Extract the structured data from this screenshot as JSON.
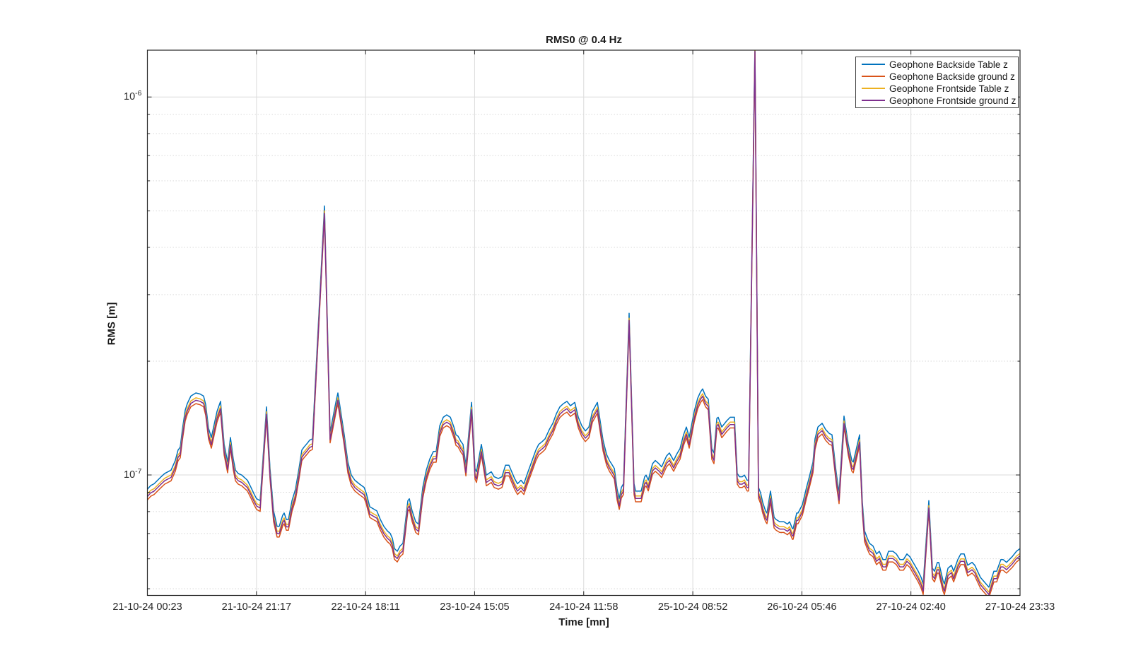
{
  "figure": {
    "title": "RMS0 @ 0.4 Hz",
    "xlabel": "Time [mn]",
    "ylabel": "RMS [m]",
    "background_color": "#ffffff",
    "axis_color": "#262626",
    "grid_major_color": "#dbdbdb",
    "grid_minor_color": "#d9d9d9"
  },
  "chart_data": {
    "type": "line",
    "title": "RMS0 @ 0.4 Hz",
    "xlabel": "Time [mn]",
    "ylabel": "RMS [m]",
    "y_scale": "log",
    "grid": true,
    "minor_grid": true,
    "legend_position": "top-right",
    "ylim": [
      4.8e-08,
      1.33e-06
    ],
    "xlim_minutes": [
      0,
      10030
    ],
    "x_ticks_minutes": [
      0,
      1254,
      2508,
      3761,
      5015,
      6269,
      7523,
      8776,
      10030
    ],
    "x_ticklabels": [
      "21-10-24 00:23",
      "21-10-24 21:17",
      "22-10-24 18:11",
      "23-10-24 15:05",
      "24-10-24 11:58",
      "25-10-24 08:52",
      "26-10-24 05:46",
      "27-10-24 02:40",
      "27-10-24 23:33"
    ],
    "y_ticks": [
      1e-07,
      1e-06
    ],
    "y_ticklabels": [
      {
        "base": "10",
        "exp": "-7"
      },
      {
        "base": "10",
        "exp": "-6"
      }
    ],
    "series": [
      {
        "name": "Geophone Backside Table z",
        "color": "#0072BD",
        "scale": 1.03
      },
      {
        "name": "Geophone Backside ground z",
        "color": "#D95319",
        "scale": 0.965
      },
      {
        "name": "Geophone Frontside Table z",
        "color": "#EDB120",
        "scale": 1.0
      },
      {
        "name": "Geophone Frontside ground z",
        "color": "#7E2F8E",
        "scale": 0.985
      }
    ],
    "series_note": "The four traces are nearly coincident; each series = base_points value multiplied by its scale factor. x = minutes after 21-10-24 00:23, y = RMS [m].",
    "base_points": [
      [
        0,
        8.9e-08
      ],
      [
        37,
        9.1e-08
      ],
      [
        77,
        9.2e-08
      ],
      [
        118,
        9.4e-08
      ],
      [
        158,
        9.6e-08
      ],
      [
        199,
        9.8e-08
      ],
      [
        272,
        1e-07
      ],
      [
        321,
        1.06e-07
      ],
      [
        353,
        1.13e-07
      ],
      [
        378,
        1.15e-07
      ],
      [
        402,
        1.28e-07
      ],
      [
        435,
        1.44e-07
      ],
      [
        459,
        1.5e-07
      ],
      [
        500,
        1.57e-07
      ],
      [
        557,
        1.6e-07
      ],
      [
        605,
        1.59e-07
      ],
      [
        646,
        1.57e-07
      ],
      [
        670,
        1.49e-07
      ],
      [
        703,
        1.29e-07
      ],
      [
        735,
        1.22e-07
      ],
      [
        800,
        1.43e-07
      ],
      [
        841,
        1.52e-07
      ],
      [
        882,
        1.17e-07
      ],
      [
        922,
        1.05e-07
      ],
      [
        955,
        1.22e-07
      ],
      [
        987,
        1.07e-07
      ],
      [
        1012,
        1e-07
      ],
      [
        1044,
        9.8e-08
      ],
      [
        1085,
        9.7e-08
      ],
      [
        1150,
        9.4e-08
      ],
      [
        1190,
        9e-08
      ],
      [
        1231,
        8.6e-08
      ],
      [
        1255,
        8.4e-08
      ],
      [
        1296,
        8.3e-08
      ],
      [
        1369,
        1.47e-07
      ],
      [
        1410,
        1.01e-07
      ],
      [
        1450,
        7.8e-08
      ],
      [
        1491,
        7.1e-08
      ],
      [
        1515,
        7.1e-08
      ],
      [
        1556,
        7.6e-08
      ],
      [
        1572,
        7.7e-08
      ],
      [
        1597,
        7.4e-08
      ],
      [
        1621,
        7.4e-08
      ],
      [
        1662,
        8.3e-08
      ],
      [
        1702,
        8.9e-08
      ],
      [
        1743,
        1.01e-07
      ],
      [
        1775,
        1.13e-07
      ],
      [
        1800,
        1.15e-07
      ],
      [
        1841,
        1.18e-07
      ],
      [
        1865,
        1.2e-07
      ],
      [
        1897,
        1.21e-07
      ],
      [
        2035,
        5e-07
      ],
      [
        2100,
        1.26e-07
      ],
      [
        2166,
        1.51e-07
      ],
      [
        2190,
        1.6e-07
      ],
      [
        2222,
        1.43e-07
      ],
      [
        2263,
        1.24e-07
      ],
      [
        2304,
        1.05e-07
      ],
      [
        2344,
        9.7e-08
      ],
      [
        2385,
        9.4e-08
      ],
      [
        2434,
        9.2e-08
      ],
      [
        2491,
        9e-08
      ],
      [
        2515,
        8.7e-08
      ],
      [
        2556,
        8e-08
      ],
      [
        2596,
        7.9e-08
      ],
      [
        2637,
        7.8e-08
      ],
      [
        2678,
        7.4e-08
      ],
      [
        2718,
        7.1e-08
      ],
      [
        2759,
        6.9e-08
      ],
      [
        2791,
        6.8e-08
      ],
      [
        2816,
        6.6e-08
      ],
      [
        2840,
        6.2e-08
      ],
      [
        2872,
        6.1e-08
      ],
      [
        2905,
        6.3e-08
      ],
      [
        2937,
        6.4e-08
      ],
      [
        2994,
        8.3e-08
      ],
      [
        3011,
        8.4e-08
      ],
      [
        3043,
        7.8e-08
      ],
      [
        3084,
        7.3e-08
      ],
      [
        3116,
        7.2e-08
      ],
      [
        3165,
        9e-08
      ],
      [
        3206,
        1e-07
      ],
      [
        3246,
        1.07e-07
      ],
      [
        3287,
        1.12e-07
      ],
      [
        3319,
        1.12e-07
      ],
      [
        3360,
        1.31e-07
      ],
      [
        3401,
        1.38e-07
      ],
      [
        3441,
        1.4e-07
      ],
      [
        3482,
        1.38e-07
      ],
      [
        3523,
        1.3e-07
      ],
      [
        3547,
        1.24e-07
      ],
      [
        3571,
        1.23e-07
      ],
      [
        3604,
        1.19e-07
      ],
      [
        3628,
        1.17e-07
      ],
      [
        3661,
        1.03e-07
      ],
      [
        3726,
        1.51e-07
      ],
      [
        3766,
        1.01e-07
      ],
      [
        3783,
        9.9e-08
      ],
      [
        3839,
        1.17e-07
      ],
      [
        3896,
        9.7e-08
      ],
      [
        3953,
        9.9e-08
      ],
      [
        3986,
        9.6e-08
      ],
      [
        4034,
        9.5e-08
      ],
      [
        4075,
        9.6e-08
      ],
      [
        4116,
        1.03e-07
      ],
      [
        4156,
        1.03e-07
      ],
      [
        4221,
        9.5e-08
      ],
      [
        4254,
        9.2e-08
      ],
      [
        4294,
        9.4e-08
      ],
      [
        4327,
        9.2e-08
      ],
      [
        4375,
        9.9e-08
      ],
      [
        4416,
        1.05e-07
      ],
      [
        4465,
        1.13e-07
      ],
      [
        4498,
        1.17e-07
      ],
      [
        4538,
        1.19e-07
      ],
      [
        4571,
        1.21e-07
      ],
      [
        4620,
        1.28e-07
      ],
      [
        4660,
        1.33e-07
      ],
      [
        4701,
        1.41e-07
      ],
      [
        4741,
        1.47e-07
      ],
      [
        4782,
        1.5e-07
      ],
      [
        4823,
        1.52e-07
      ],
      [
        4863,
        1.48e-07
      ],
      [
        4912,
        1.51e-07
      ],
      [
        4953,
        1.38e-07
      ],
      [
        4993,
        1.31e-07
      ],
      [
        5034,
        1.27e-07
      ],
      [
        5075,
        1.3e-07
      ],
      [
        5115,
        1.43e-07
      ],
      [
        5172,
        1.51e-07
      ],
      [
        5237,
        1.2e-07
      ],
      [
        5278,
        1.1e-07
      ],
      [
        5310,
        1.06e-07
      ],
      [
        5334,
        1.04e-07
      ],
      [
        5367,
        1.01e-07
      ],
      [
        5399,
        8.9e-08
      ],
      [
        5424,
        8.4e-08
      ],
      [
        5448,
        9e-08
      ],
      [
        5472,
        9.2e-08
      ],
      [
        5537,
        2.6e-07
      ],
      [
        5594,
        9.2e-08
      ],
      [
        5611,
        8.8e-08
      ],
      [
        5643,
        8.8e-08
      ],
      [
        5675,
        8.8e-08
      ],
      [
        5716,
        9.6e-08
      ],
      [
        5732,
        9.7e-08
      ],
      [
        5757,
        9.4e-08
      ],
      [
        5806,
        1.04e-07
      ],
      [
        5838,
        1.06e-07
      ],
      [
        5879,
        1.04e-07
      ],
      [
        5911,
        1.02e-07
      ],
      [
        5968,
        1.09e-07
      ],
      [
        6000,
        1.11e-07
      ],
      [
        6049,
        1.06e-07
      ],
      [
        6082,
        1.1e-07
      ],
      [
        6122,
        1.14e-07
      ],
      [
        6163,
        1.24e-07
      ],
      [
        6195,
        1.3e-07
      ],
      [
        6228,
        1.22e-07
      ],
      [
        6285,
        1.43e-07
      ],
      [
        6325,
        1.55e-07
      ],
      [
        6358,
        1.61e-07
      ],
      [
        6382,
        1.64e-07
      ],
      [
        6415,
        1.57e-07
      ],
      [
        6447,
        1.54e-07
      ],
      [
        6488,
        1.14e-07
      ],
      [
        6512,
        1.11e-07
      ],
      [
        6545,
        1.37e-07
      ],
      [
        6561,
        1.38e-07
      ],
      [
        6602,
        1.3e-07
      ],
      [
        6658,
        1.35e-07
      ],
      [
        6699,
        1.38e-07
      ],
      [
        6748,
        1.38e-07
      ],
      [
        6780,
        9.8e-08
      ],
      [
        6805,
        9.6e-08
      ],
      [
        6837,
        9.6e-08
      ],
      [
        6862,
        9.7e-08
      ],
      [
        6894,
        9.4e-08
      ],
      [
        6910,
        9.4e-08
      ],
      [
        6983,
        1.34e-06
      ],
      [
        7024,
        9e-08
      ],
      [
        7048,
        8.7e-08
      ],
      [
        7073,
        8.2e-08
      ],
      [
        7105,
        7.8e-08
      ],
      [
        7121,
        7.7e-08
      ],
      [
        7162,
        8.8e-08
      ],
      [
        7203,
        7.5e-08
      ],
      [
        7227,
        7.4e-08
      ],
      [
        7268,
        7.3e-08
      ],
      [
        7316,
        7.3e-08
      ],
      [
        7357,
        7.2e-08
      ],
      [
        7381,
        7.3e-08
      ],
      [
        7414,
        7e-08
      ],
      [
        7422,
        7e-08
      ],
      [
        7463,
        7.7e-08
      ],
      [
        7479,
        7.7e-08
      ],
      [
        7528,
        8.1e-08
      ],
      [
        7576,
        9e-08
      ],
      [
        7609,
        9.6e-08
      ],
      [
        7650,
        1.05e-07
      ],
      [
        7674,
        1.21e-07
      ],
      [
        7707,
        1.3e-07
      ],
      [
        7755,
        1.33e-07
      ],
      [
        7796,
        1.28e-07
      ],
      [
        7837,
        1.25e-07
      ],
      [
        7869,
        1.24e-07
      ],
      [
        7918,
        9.8e-08
      ],
      [
        7950,
        8.7e-08
      ],
      [
        8007,
        1.39e-07
      ],
      [
        8056,
        1.17e-07
      ],
      [
        8097,
        1.06e-07
      ],
      [
        8113,
        1.05e-07
      ],
      [
        8153,
        1.15e-07
      ],
      [
        8186,
        1.24e-07
      ],
      [
        8218,
        8.2e-08
      ],
      [
        8243,
        6.9e-08
      ],
      [
        8275,
        6.6e-08
      ],
      [
        8300,
        6.4e-08
      ],
      [
        8340,
        6.3e-08
      ],
      [
        8381,
        6e-08
      ],
      [
        8413,
        6.1e-08
      ],
      [
        8454,
        5.8e-08
      ],
      [
        8487,
        5.8e-08
      ],
      [
        8519,
        6.1e-08
      ],
      [
        8568,
        6.1e-08
      ],
      [
        8608,
        6e-08
      ],
      [
        8649,
        5.8e-08
      ],
      [
        8690,
        5.8e-08
      ],
      [
        8730,
        6e-08
      ],
      [
        8763,
        5.9e-08
      ],
      [
        8820,
        5.6e-08
      ],
      [
        8860,
        5.4e-08
      ],
      [
        8893,
        5.2e-08
      ],
      [
        8917,
        5e-08
      ],
      [
        8982,
        8.3e-08
      ],
      [
        9023,
        5.5e-08
      ],
      [
        9047,
        5.4e-08
      ],
      [
        9080,
        5.7e-08
      ],
      [
        9096,
        5.7e-08
      ],
      [
        9145,
        5.1e-08
      ],
      [
        9161,
        5e-08
      ],
      [
        9202,
        5.5e-08
      ],
      [
        9242,
        5.6e-08
      ],
      [
        9267,
        5.4e-08
      ],
      [
        9315,
        5.8e-08
      ],
      [
        9348,
        6e-08
      ],
      [
        9388,
        6e-08
      ],
      [
        9429,
        5.6e-08
      ],
      [
        9478,
        5.7e-08
      ],
      [
        9510,
        5.6e-08
      ],
      [
        9575,
        5.2e-08
      ],
      [
        9640,
        5e-08
      ],
      [
        9672,
        4.9e-08
      ],
      [
        9729,
        5.4e-08
      ],
      [
        9762,
        5.4e-08
      ],
      [
        9810,
        5.8e-08
      ],
      [
        9835,
        5.8e-08
      ],
      [
        9875,
        5.7e-08
      ],
      [
        9940,
        5.9e-08
      ],
      [
        9989,
        6.1e-08
      ],
      [
        10030,
        6.2e-08
      ]
    ]
  }
}
